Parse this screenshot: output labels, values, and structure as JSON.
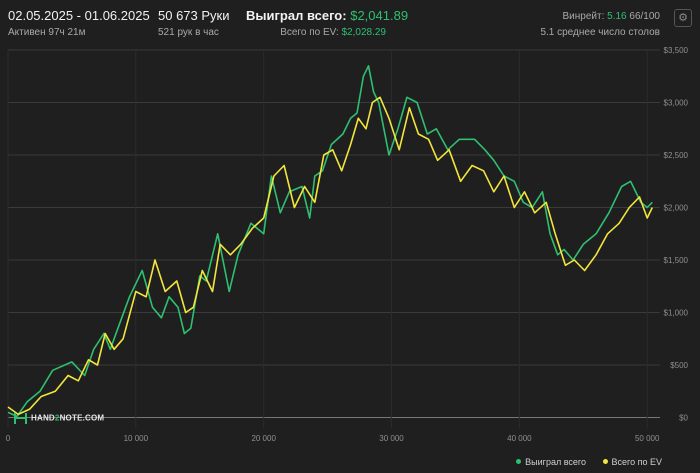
{
  "header": {
    "date_range": "02.05.2025 - 01.06.2025",
    "active": "Активен 97ч 21м",
    "hands": "50 673 Руки",
    "hands_per_hour": "521 рук в час",
    "won_label": "Выиграл всего:",
    "won_value": "$2,041.89",
    "ev_label": "Всего по EV:",
    "ev_value": "$2,028.29",
    "winrate_label": "Винрейт:",
    "winrate_value": "5.16",
    "winrate_suffix": "66/100",
    "tables": "5.1 среднее число столов",
    "settings_icon": "gear-icon"
  },
  "logo": {
    "text_a": "HAND",
    "text_b": "2",
    "text_c": "NOTE.COM"
  },
  "colors": {
    "won": "#2fbf71",
    "ev": "#f2e63c",
    "background": "#1f1f1f",
    "grid": "#3a3a3a"
  },
  "chart_data": {
    "type": "line",
    "xlim": [
      0,
      51000
    ],
    "ylim": [
      -100,
      3500
    ],
    "x_ticks": [
      0,
      10000,
      20000,
      30000,
      40000,
      50000
    ],
    "x_tick_labels": [
      "0",
      "10 000",
      "20 000",
      "30 000",
      "40 000",
      "50 000"
    ],
    "y_ticks": [
      0,
      500,
      1000,
      1500,
      2000,
      2500,
      3000,
      3500
    ],
    "y_tick_labels": [
      "$0",
      "$500",
      "$1,000",
      "$1,500",
      "$2,000",
      "$2,500",
      "$3,000",
      "$3,500"
    ],
    "grid": true,
    "legend_position": "bottom-right",
    "series": [
      {
        "name": "Выиграл всего",
        "color": "#2fbf71",
        "x": [
          0,
          700,
          1500,
          2500,
          3500,
          5000,
          6000,
          6700,
          7500,
          8000,
          8600,
          9500,
          10500,
          11300,
          12000,
          12600,
          13300,
          13800,
          14300,
          15000,
          15500,
          16400,
          17300,
          18000,
          19000,
          20000,
          20600,
          21300,
          22000,
          23000,
          23600,
          24000,
          24600,
          25300,
          26200,
          26800,
          27300,
          27800,
          28200,
          28600,
          29000,
          29800,
          30500,
          31200,
          32000,
          32800,
          33500,
          34400,
          35300,
          36500,
          37300,
          38000,
          38800,
          39600,
          40300,
          41000,
          41800,
          42400,
          43000,
          43500,
          44200,
          45000,
          46000,
          47000,
          48000,
          48700,
          49500,
          50000,
          50400
        ],
        "y": [
          50,
          10,
          150,
          250,
          450,
          530,
          400,
          650,
          800,
          650,
          850,
          1150,
          1400,
          1050,
          950,
          1150,
          1050,
          800,
          850,
          1350,
          1300,
          1750,
          1200,
          1550,
          1850,
          1750,
          2300,
          1950,
          2150,
          2200,
          1900,
          2300,
          2350,
          2600,
          2700,
          2850,
          2900,
          3250,
          3350,
          3100,
          3000,
          2500,
          2750,
          3050,
          3000,
          2700,
          2750,
          2550,
          2650,
          2650,
          2550,
          2450,
          2300,
          2250,
          2050,
          2000,
          2150,
          1750,
          1550,
          1600,
          1500,
          1650,
          1750,
          1950,
          2200,
          2250,
          2050,
          2000,
          2050
        ]
      },
      {
        "name": "Всего по EV",
        "color": "#f2e63c",
        "x": [
          0,
          800,
          1700,
          2600,
          3700,
          4700,
          5500,
          6300,
          7000,
          7600,
          8300,
          9000,
          10000,
          10800,
          11500,
          12300,
          13200,
          13900,
          14500,
          15200,
          16000,
          16600,
          17400,
          18200,
          19100,
          20000,
          20800,
          21600,
          22400,
          23200,
          24000,
          24700,
          25400,
          26100,
          26800,
          27400,
          28000,
          28500,
          29100,
          29800,
          30600,
          31400,
          32100,
          32900,
          33600,
          34500,
          35400,
          36300,
          37200,
          38000,
          38800,
          39600,
          40400,
          41200,
          42100,
          42800,
          43600,
          44300,
          45100,
          46000,
          46900,
          47800,
          48600,
          49400,
          50000,
          50400
        ],
        "y": [
          100,
          30,
          80,
          200,
          250,
          400,
          350,
          550,
          500,
          800,
          650,
          750,
          1200,
          1150,
          1500,
          1200,
          1300,
          1000,
          1050,
          1400,
          1200,
          1650,
          1550,
          1650,
          1800,
          1900,
          2300,
          2400,
          2000,
          2200,
          2050,
          2500,
          2550,
          2350,
          2600,
          2850,
          2750,
          3000,
          3050,
          2850,
          2550,
          2950,
          2700,
          2650,
          2450,
          2550,
          2250,
          2400,
          2350,
          2150,
          2300,
          2000,
          2150,
          1950,
          2050,
          1750,
          1450,
          1500,
          1400,
          1550,
          1750,
          1850,
          2000,
          2100,
          1900,
          2000
        ]
      }
    ]
  }
}
